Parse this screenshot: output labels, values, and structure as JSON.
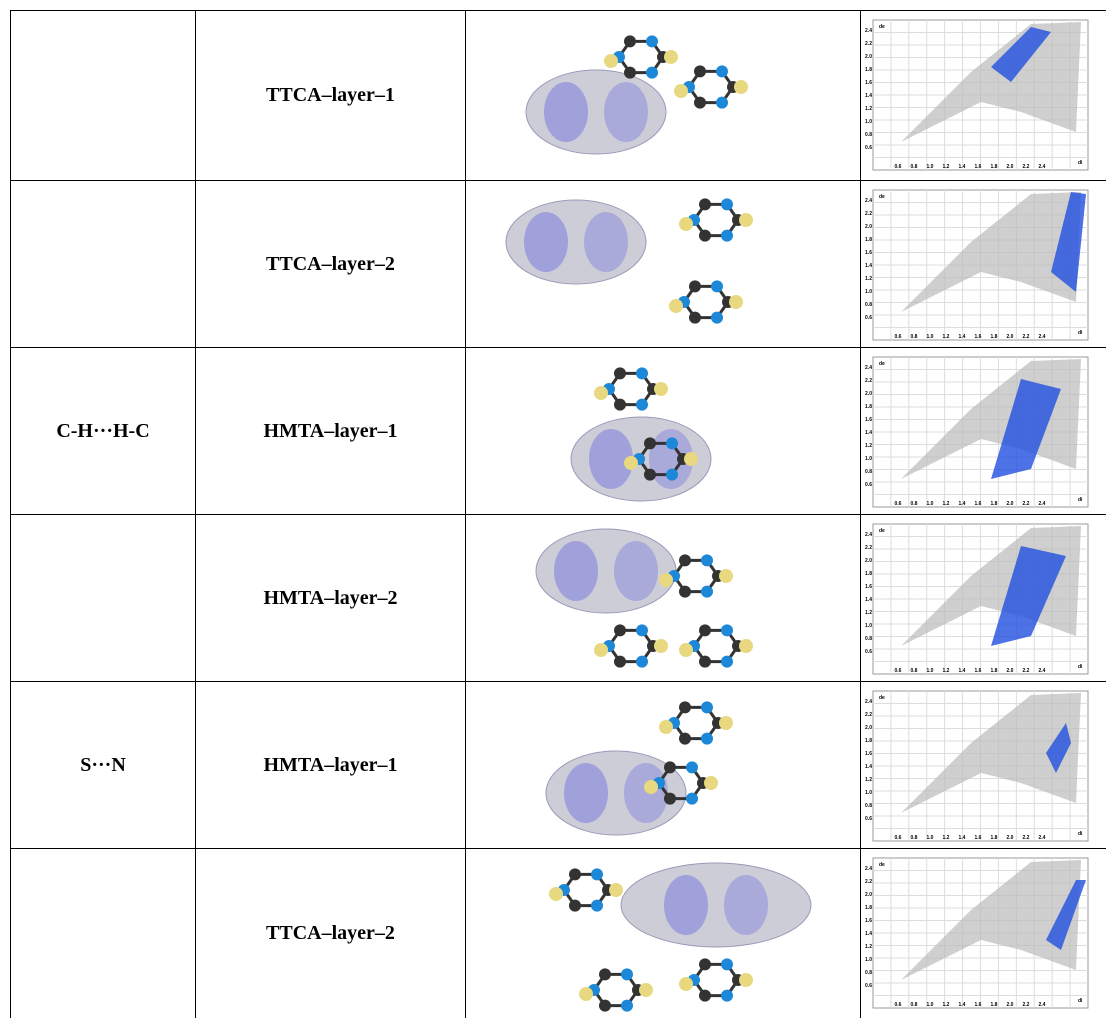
{
  "table": {
    "rows": [
      {
        "layer": "TTCA–layer–1"
      },
      {
        "layer": "TTCA–layer–2"
      },
      {
        "interaction": "C-H···H-C",
        "layer": "HMTA–layer–1"
      },
      {
        "layer": "HMTA–layer–2"
      },
      {
        "interaction": "S···N",
        "layer": "HMTA–layer–1"
      },
      {
        "layer": "TTCA–layer–2"
      }
    ]
  },
  "fingerprint_axis": {
    "y_label": "de",
    "x_label": "di",
    "y_ticks": [
      "2.4",
      "2.2",
      "2.0",
      "1.8",
      "1.6",
      "1.4",
      "1.2",
      "1.0",
      "0.8",
      "0.6"
    ],
    "x_ticks": [
      "0.6",
      "0.8",
      "1.0",
      "1.2",
      "1.4",
      "1.6",
      "1.8",
      "2.0",
      "2.2",
      "2.4"
    ]
  }
}
